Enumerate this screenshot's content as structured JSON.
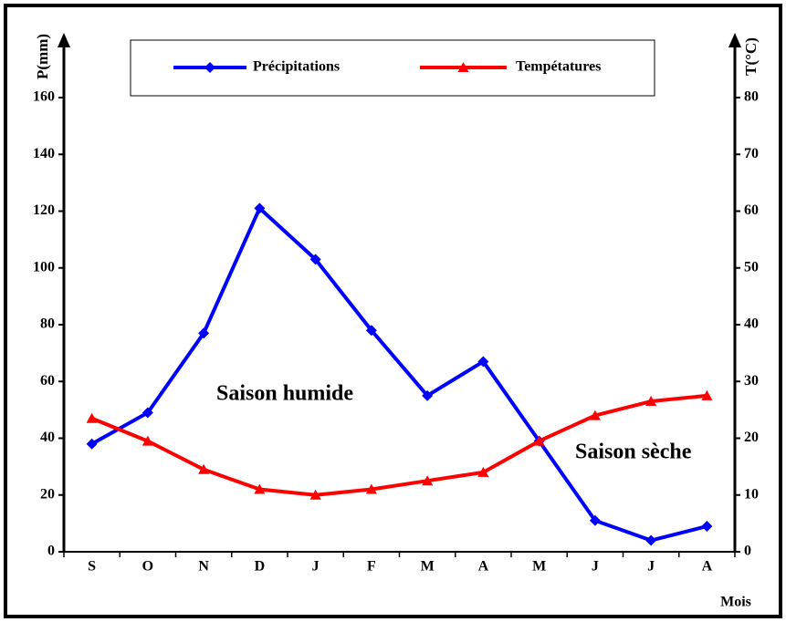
{
  "chart_data": {
    "type": "line",
    "categories": [
      "S",
      "O",
      "N",
      "D",
      "J",
      "F",
      "M",
      "A",
      "M",
      "J",
      "J",
      "A"
    ],
    "series": [
      {
        "name": "Précipitations",
        "color": "#0000ff",
        "marker": "diamond",
        "axis": "y",
        "values": [
          38,
          49,
          77,
          121,
          103,
          78,
          55,
          67,
          39,
          11,
          4,
          9
        ]
      },
      {
        "name": "Tempétatures",
        "color": "#ff0000",
        "marker": "triangle",
        "axis": "y2",
        "values": [
          23.5,
          19.5,
          14.5,
          11,
          10,
          11,
          12.5,
          14,
          19.5,
          24,
          26.5,
          27.5
        ]
      }
    ],
    "ylabel": "P(mm)",
    "y2label": "T(°C)",
    "xlabel": "Mois",
    "ylim": [
      0,
      160
    ],
    "yticks": [
      0,
      20,
      40,
      60,
      80,
      100,
      120,
      140,
      160
    ],
    "y2lim": [
      0,
      80
    ],
    "y2ticks": [
      0,
      10,
      20,
      30,
      40,
      50,
      60,
      70,
      80
    ],
    "annotations": [
      "Saison humide",
      "Saison sèche"
    ],
    "legend": "top"
  }
}
